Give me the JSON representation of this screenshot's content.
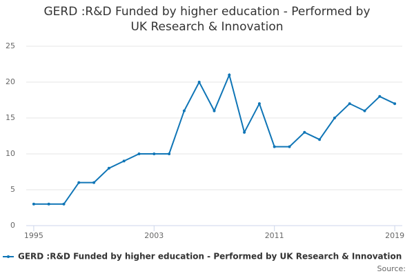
{
  "chart_data": {
    "type": "line",
    "title": "GERD :R&D Funded by higher education - Performed by UK Research & Innovation",
    "x": [
      1995,
      1996,
      1997,
      1998,
      1999,
      2000,
      2001,
      2002,
      2003,
      2004,
      2005,
      2006,
      2007,
      2008,
      2009,
      2010,
      2011,
      2012,
      2013,
      2014,
      2015,
      2016,
      2017,
      2018,
      2019
    ],
    "series": [
      {
        "name": "GERD :R&D Funded by higher education - Performed by UK Research & Innovation",
        "color": "#0f75b6",
        "values": [
          3,
          3,
          3,
          6,
          6,
          8,
          9,
          10,
          10,
          10,
          16,
          20,
          16,
          21,
          13,
          17,
          11,
          11,
          13,
          12,
          15,
          17,
          16,
          18,
          17
        ]
      }
    ],
    "xlim": [
      1994.5,
      2019.5
    ],
    "xticks": [
      1995,
      2003,
      2011,
      2019
    ],
    "ylim": [
      0,
      25
    ],
    "yticks": [
      0,
      5,
      10,
      15,
      20,
      25
    ],
    "grid": true,
    "source_label": "Source:"
  }
}
